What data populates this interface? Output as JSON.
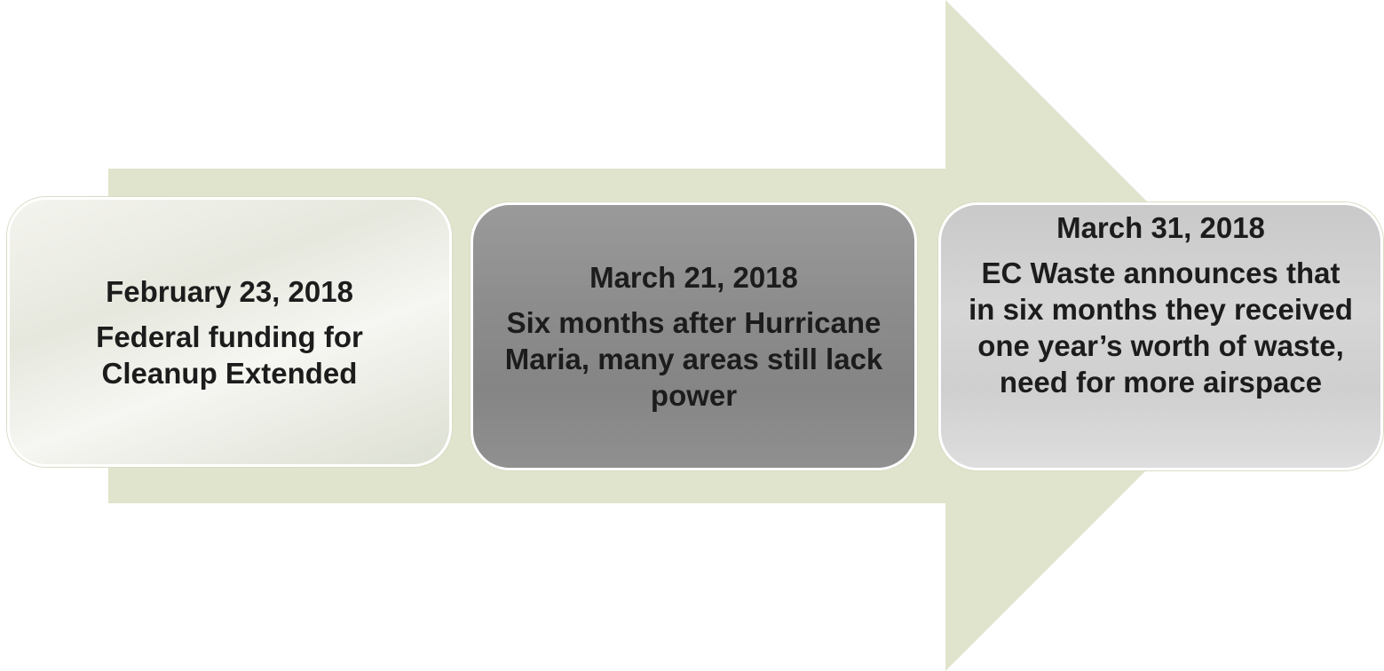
{
  "events": [
    {
      "date": "February 23, 2018",
      "text": "Federal funding for Cleanup Extended"
    },
    {
      "date": "March 21, 2018",
      "text": "Six months after Hurricane Maria, many areas still lack power"
    },
    {
      "date": "March 31, 2018",
      "text": "EC Waste announces that in six months they received one year’s worth of waste, need for more airspace"
    }
  ]
}
